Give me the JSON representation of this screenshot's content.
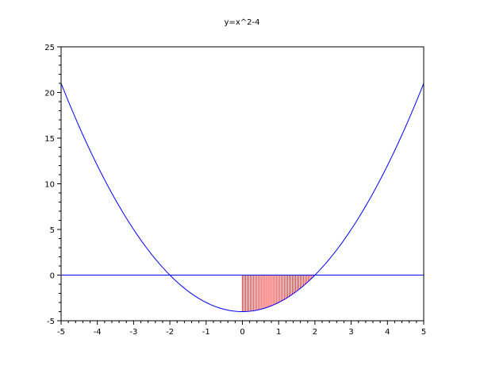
{
  "chart_data": {
    "type": "line",
    "title": "y=x^2-4",
    "xlabel": "",
    "ylabel": "",
    "xlim": [
      -5,
      5
    ],
    "ylim": [
      -5,
      25
    ],
    "x_ticks": [
      -5,
      -4,
      -3,
      -2,
      -1,
      0,
      1,
      2,
      3,
      4,
      5
    ],
    "y_ticks": [
      -5,
      0,
      5,
      10,
      15,
      20,
      25
    ],
    "x_tick_labels": [
      "-5",
      "-4",
      "-3",
      "-2",
      "-1",
      "0",
      "1",
      "2",
      "3",
      "4",
      "5"
    ],
    "y_tick_labels": [
      "-5",
      "0",
      "5",
      "10",
      "15",
      "20",
      "25"
    ],
    "grid": false,
    "series": [
      {
        "function": "x^2-4",
        "x_range": [
          -5,
          5
        ],
        "color": "#0000ff"
      },
      {
        "function": "0",
        "x_range": [
          -5,
          5
        ],
        "color": "#0000ff"
      }
    ],
    "shaded_region": {
      "x_range": [
        0,
        2
      ],
      "between": [
        "x^2-4",
        "0"
      ],
      "style": "vertical lines",
      "color": "#ff0000"
    }
  }
}
